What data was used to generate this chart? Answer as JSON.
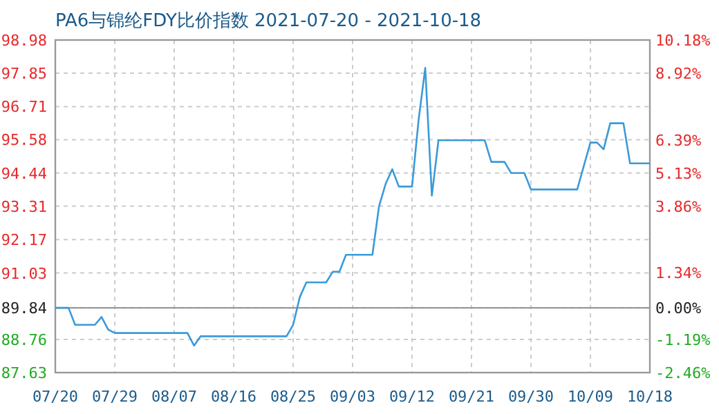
{
  "chart_data": {
    "type": "line",
    "title": "PA6与锦纶FDY比价指数 2021-07-20 - 2021-10-18",
    "x": [
      "2021-07-20",
      "2021-07-22",
      "2021-07-23",
      "2021-07-26",
      "2021-07-27",
      "2021-07-28",
      "2021-07-29",
      "2021-08-09",
      "2021-08-10",
      "2021-08-11",
      "2021-08-24",
      "2021-08-25",
      "2021-08-26",
      "2021-08-27",
      "2021-08-30",
      "2021-08-31",
      "2021-09-01",
      "2021-09-02",
      "2021-09-06",
      "2021-09-07",
      "2021-09-08",
      "2021-09-09",
      "2021-09-10",
      "2021-09-12",
      "2021-09-13",
      "2021-09-14",
      "2021-09-15",
      "2021-09-16",
      "2021-09-23",
      "2021-09-24",
      "2021-09-26",
      "2021-09-27",
      "2021-09-29",
      "2021-09-30",
      "2021-10-07",
      "2021-10-09",
      "2021-10-10",
      "2021-10-11",
      "2021-10-12",
      "2021-10-14",
      "2021-10-15",
      "2021-10-18"
    ],
    "series": [
      {
        "color": "#3a9ad9",
        "values": [
          89.84,
          89.84,
          89.26,
          89.26,
          89.53,
          89.1,
          88.98,
          88.98,
          88.55,
          88.87,
          88.87,
          89.26,
          90.2,
          90.71,
          90.71,
          91.07,
          91.07,
          91.65,
          91.65,
          93.3,
          94.07,
          94.57,
          93.98,
          93.98,
          96.27,
          98.03,
          93.67,
          95.56,
          95.56,
          94.82,
          94.82,
          94.44,
          94.44,
          93.88,
          93.88,
          95.48,
          95.48,
          95.25,
          96.14,
          96.14,
          94.77,
          94.77
        ]
      }
    ],
    "xlim": [
      "2021-07-20",
      "2021-10-18"
    ],
    "xticks": [
      {
        "value": "2021-07-20",
        "label": "07/20"
      },
      {
        "value": "2021-07-29",
        "label": "07/29"
      },
      {
        "value": "2021-08-07",
        "label": "08/07"
      },
      {
        "value": "2021-08-16",
        "label": "08/16"
      },
      {
        "value": "2021-08-25",
        "label": "08/25"
      },
      {
        "value": "2021-09-03",
        "label": "09/03"
      },
      {
        "value": "2021-09-12",
        "label": "09/12"
      },
      {
        "value": "2021-09-21",
        "label": "09/21"
      },
      {
        "value": "2021-09-30",
        "label": "09/30"
      },
      {
        "value": "2021-10-09",
        "label": "10/09"
      },
      {
        "value": "2021-10-18",
        "label": "10/18"
      }
    ],
    "ylim": [
      87.63,
      98.98
    ],
    "yticks": [
      98.98,
      97.85,
      96.71,
      95.58,
      94.44,
      93.31,
      92.17,
      91.03,
      89.84,
      88.76,
      87.63
    ],
    "y2lim": [
      -2.46,
      10.18
    ],
    "y2ticks": [
      {
        "value": 10.18,
        "label": "10.18%"
      },
      {
        "value": 8.92,
        "label": "8.92%"
      },
      {
        "value": 6.39,
        "label": "6.39%"
      },
      {
        "value": 5.13,
        "label": "5.13%"
      },
      {
        "value": 3.86,
        "label": "3.86%"
      },
      {
        "value": 1.34,
        "label": "1.34%"
      },
      {
        "value": 0,
        "label": "0.00%"
      },
      {
        "value": -1.19,
        "label": "-1.19%"
      },
      {
        "value": -2.46,
        "label": "-2.46%"
      }
    ],
    "ref_lines": [
      {
        "axis": "y",
        "value": 89.84,
        "color": "#999999"
      }
    ],
    "grid": true
  }
}
